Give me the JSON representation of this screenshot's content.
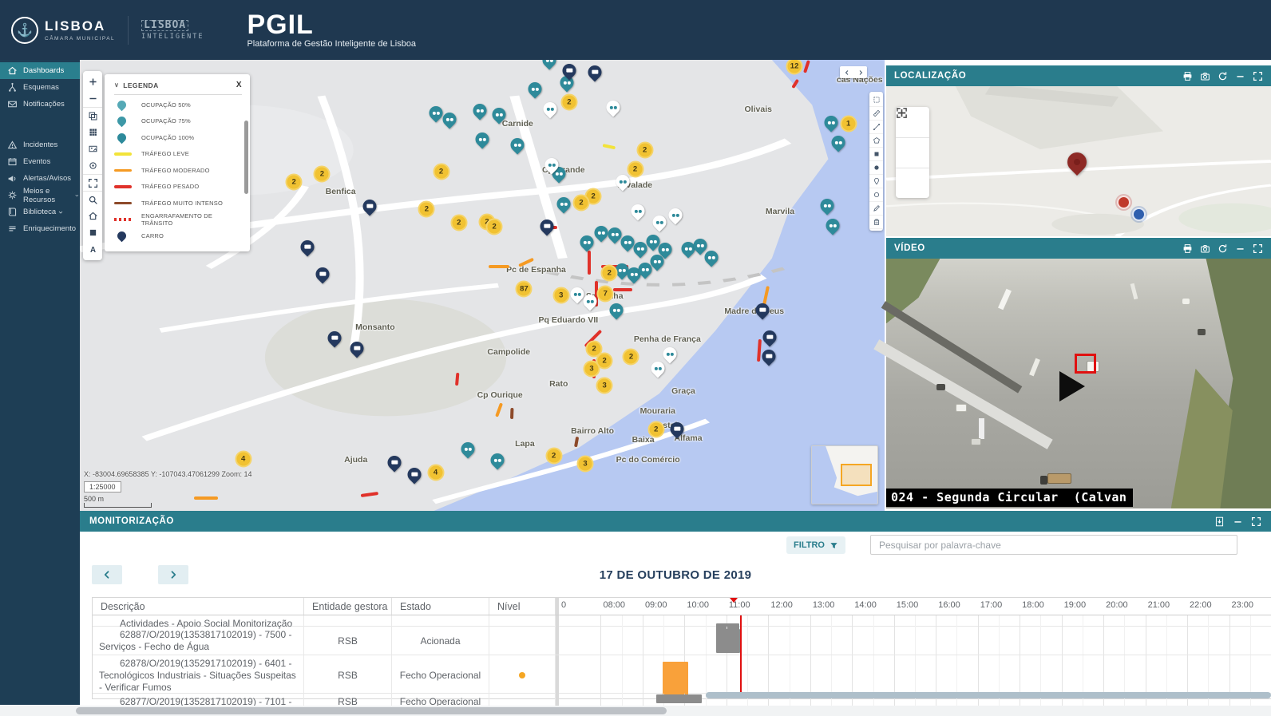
{
  "header": {
    "app_title": "PGIL",
    "app_subtitle": "Plataforma de Gestão Inteligente de Lisboa",
    "logo_lisboa": {
      "name": "LISBOA",
      "sub": "CÂMARA MUNICIPAL"
    },
    "logo_int": {
      "line1": "LISBOA",
      "line2": "INTELIGENTE"
    }
  },
  "sidebar": {
    "groups": [
      {
        "items": [
          {
            "label": "Dashboards",
            "icon": "home-icon",
            "active": true
          },
          {
            "label": "Esquemas",
            "icon": "schema-icon"
          },
          {
            "label": "Notificações",
            "icon": "mail-icon"
          }
        ]
      },
      {
        "items": [
          {
            "label": "Incidentes",
            "icon": "warning-icon"
          },
          {
            "label": "Eventos",
            "icon": "calendar-icon"
          },
          {
            "label": "Alertas/Avisos",
            "icon": "megaphone-icon"
          },
          {
            "label": "Meios e Recursos",
            "icon": "gear-icon",
            "chevron": true
          },
          {
            "label": "Biblioteca",
            "icon": "book-icon",
            "chevron": true
          },
          {
            "label": "Enriquecimento",
            "icon": "list-icon"
          }
        ]
      }
    ]
  },
  "map": {
    "toolbar": [
      "zoom-in-icon",
      "zoom-out-icon",
      "layers-icon",
      "grid-icon",
      "frame-icon",
      "rings-icon",
      "fullscreen-icon",
      "search-icon",
      "home-icon",
      "square-icon",
      "font-icon"
    ],
    "draw_toolbar": [
      "select-icon",
      "measure-icon",
      "line-icon",
      "polygon-icon",
      "square-fill-icon",
      "circle-fill-icon",
      "point-icon",
      "circle-icon",
      "edit-icon",
      "trash-icon"
    ],
    "legend": {
      "title": "LEGENDA",
      "close_label": "X",
      "items": [
        {
          "label": "OCUPAÇÃO 50%",
          "type": "pin",
          "color": "#55a9b6"
        },
        {
          "label": "OCUPAÇÃO 75%",
          "type": "pin",
          "color": "#3d98a7"
        },
        {
          "label": "OCUPAÇÃO 100%",
          "type": "pin",
          "color": "#2d8a9b"
        },
        {
          "label": "TRÁFEGO LEVE",
          "type": "line",
          "color": "#f2e33a"
        },
        {
          "label": "TRÁFEGO MODERADO",
          "type": "line",
          "color": "#f59a23"
        },
        {
          "label": "TRÁFEGO PESADO",
          "type": "line",
          "color": "#e0312a"
        },
        {
          "label": "TRÁFEGO MUITO INTENSO",
          "type": "line",
          "color": "#8d4a2a"
        },
        {
          "label": "ENGARRAFAMENTO DE TRÂNSITO",
          "type": "dots",
          "color": "#e0312a"
        },
        {
          "label": "CARRO",
          "type": "pin",
          "color": "#24395e"
        }
      ]
    },
    "status": {
      "coords": "X: -83004.69658385 Y: -107043.47061299 Zoom: 14",
      "ratio": "1:25000",
      "distance": "500 m"
    },
    "labels": [
      [
        "Carnide",
        54.4,
        14.2
      ],
      [
        "Olivais",
        84.3,
        11.0
      ],
      [
        "Cp Grande",
        60.1,
        24.4
      ],
      [
        "Alvalade",
        69.0,
        27.8
      ],
      [
        "Benfica",
        32.4,
        29.2
      ],
      [
        "Marvila",
        87.0,
        33.6
      ],
      [
        "Monsanto",
        36.7,
        59.3
      ],
      [
        "Pc de Espanha",
        56.7,
        46.5
      ],
      [
        "Saldanha",
        65.2,
        52.4
      ],
      [
        "Madre de Deus",
        83.8,
        55.8
      ],
      [
        "Pq Eduardo VII",
        60.7,
        57.7
      ],
      [
        "Campolide",
        53.3,
        64.8
      ],
      [
        "Penha de França",
        73.0,
        61.9
      ],
      [
        "Rato",
        59.5,
        71.9
      ],
      [
        "Cp Ourique",
        52.2,
        74.3
      ],
      [
        "Graça",
        75.0,
        73.5
      ],
      [
        "Mouraria",
        71.8,
        77.9
      ],
      [
        "Bairro Alto",
        63.7,
        82.3
      ],
      [
        "Castelo",
        73.0,
        81.1
      ],
      [
        "Alfama",
        75.6,
        83.9
      ],
      [
        "Lapa",
        55.3,
        85.1
      ],
      [
        "Baixa",
        70.0,
        84.2
      ],
      [
        "Ajuda",
        34.3,
        88.7
      ],
      [
        "Pc do Comércio",
        70.6,
        88.7
      ],
      [
        "cas Nações",
        96.9,
        4.4
      ]
    ],
    "markers": [
      [
        "c",
        60.8,
        9.4,
        "2"
      ],
      [
        "c",
        88.8,
        1.5,
        "12"
      ],
      [
        "c",
        95.5,
        14.2,
        "1"
      ],
      [
        "c",
        30.1,
        25.3,
        "2"
      ],
      [
        "c",
        26.6,
        27.1,
        "2"
      ],
      [
        "c",
        44.9,
        24.8,
        "2"
      ],
      [
        "c",
        43.1,
        33.1,
        "2"
      ],
      [
        "c",
        47.1,
        36.1,
        "2"
      ],
      [
        "c",
        50.6,
        35.9,
        "2"
      ],
      [
        "c",
        70.2,
        20.0,
        "2"
      ],
      [
        "c",
        69.0,
        24.2,
        "2"
      ],
      [
        "c",
        63.8,
        30.3,
        "2"
      ],
      [
        "c",
        62.3,
        31.6,
        "2"
      ],
      [
        "c",
        51.5,
        37.0,
        "2"
      ],
      [
        "c",
        55.2,
        50.8,
        "87"
      ],
      [
        "c",
        59.8,
        52.2,
        "3"
      ],
      [
        "c",
        65.3,
        51.9,
        "7"
      ],
      [
        "c",
        63.9,
        64.1,
        "2"
      ],
      [
        "c",
        65.2,
        66.7,
        "2"
      ],
      [
        "c",
        63.6,
        68.5,
        "3"
      ],
      [
        "c",
        65.2,
        72.2,
        "3"
      ],
      [
        "c",
        68.5,
        65.8,
        "2"
      ],
      [
        "c",
        71.6,
        81.9,
        "2"
      ],
      [
        "c",
        58.9,
        87.8,
        "2"
      ],
      [
        "c",
        62.8,
        89.6,
        "3"
      ],
      [
        "c",
        44.2,
        91.5,
        "4"
      ],
      [
        "c",
        20.3,
        88.5,
        "4"
      ],
      [
        "c",
        65.8,
        47.3,
        "2"
      ],
      [
        "b",
        44.2,
        13.3
      ],
      [
        "b",
        45.9,
        14.7
      ],
      [
        "b",
        49.7,
        12.7
      ],
      [
        "b",
        52.1,
        13.6
      ],
      [
        "b",
        58.3,
        1.6
      ],
      [
        "b",
        56.5,
        8.0
      ],
      [
        "b",
        60.5,
        6.5
      ],
      [
        "b",
        50.0,
        19.1
      ],
      [
        "b",
        54.4,
        20.4
      ],
      [
        "b",
        59.5,
        26.7
      ],
      [
        "b",
        60.1,
        33.5
      ],
      [
        "b",
        63.0,
        41.9
      ],
      [
        "b",
        64.8,
        39.8
      ],
      [
        "b",
        66.5,
        40.2
      ],
      [
        "b",
        68.1,
        41.9
      ],
      [
        "b",
        69.6,
        43.4
      ],
      [
        "b",
        71.2,
        41.8
      ],
      [
        "b",
        72.7,
        43.5
      ],
      [
        "b",
        67.4,
        48.1
      ],
      [
        "b",
        68.8,
        49.0
      ],
      [
        "b",
        70.2,
        48.0
      ],
      [
        "b",
        71.7,
        46.2
      ],
      [
        "b",
        75.6,
        43.4
      ],
      [
        "b",
        77.1,
        42.7
      ],
      [
        "b",
        78.5,
        45.3
      ],
      [
        "b",
        93.4,
        15.4
      ],
      [
        "b",
        94.2,
        19.8
      ],
      [
        "b",
        92.9,
        33.8
      ],
      [
        "b",
        93.6,
        38.2
      ],
      [
        "b",
        48.2,
        87.8
      ],
      [
        "b",
        51.9,
        90.3
      ],
      [
        "b",
        66.7,
        57.0
      ],
      [
        "w",
        58.4,
        12.4
      ],
      [
        "w",
        66.3,
        12.0
      ],
      [
        "w",
        58.6,
        24.8
      ],
      [
        "w",
        67.5,
        28.5
      ],
      [
        "w",
        61.8,
        53.5
      ],
      [
        "w",
        63.4,
        55.0
      ],
      [
        "w",
        71.8,
        69.9
      ],
      [
        "w",
        73.3,
        66.7
      ],
      [
        "w",
        69.3,
        35.0
      ],
      [
        "w",
        72.0,
        37.5
      ],
      [
        "w",
        74.0,
        36.0
      ],
      [
        "v",
        60.8,
        3.9
      ],
      [
        "v",
        64.0,
        4.2
      ],
      [
        "v",
        36.0,
        34.0
      ],
      [
        "v",
        58.0,
        38.4
      ],
      [
        "v",
        30.2,
        49.0
      ],
      [
        "v",
        28.3,
        43.0
      ],
      [
        "v",
        31.6,
        63.2
      ],
      [
        "v",
        34.4,
        65.5
      ],
      [
        "v",
        39.1,
        90.8
      ],
      [
        "v",
        41.6,
        93.5
      ],
      [
        "v",
        84.8,
        57.0
      ],
      [
        "v",
        85.7,
        63.0
      ],
      [
        "v",
        85.6,
        67.3
      ],
      [
        "v",
        74.2,
        83.4
      ]
    ],
    "traffic_colors": {
      "r": "#e0312a",
      "o": "#f59a23",
      "y": "#f2e33a",
      "b": "#8d4a2a"
    },
    "traffic": [
      [
        15.4,
        24.2,
        42,
        -62,
        "r"
      ],
      [
        19.5,
        39.1,
        16,
        -78,
        "r"
      ],
      [
        50.8,
        45.5,
        26,
        0,
        "o"
      ],
      [
        54.6,
        45.3,
        20,
        -25,
        "o"
      ],
      [
        63.3,
        42.0,
        30,
        90,
        "r"
      ],
      [
        64.8,
        45.5,
        34,
        0,
        "r"
      ],
      [
        64.2,
        48.6,
        32,
        90,
        "r"
      ],
      [
        66.3,
        50.6,
        24,
        0,
        "r"
      ],
      [
        62.8,
        63.2,
        28,
        -45,
        "r"
      ],
      [
        63.9,
        66.0,
        24,
        90,
        "r"
      ],
      [
        46.8,
        71.8,
        16,
        -85,
        "r"
      ],
      [
        51.8,
        78.8,
        18,
        -70,
        "o"
      ],
      [
        14.2,
        96.8,
        30,
        0,
        "o"
      ],
      [
        34.9,
        96.2,
        22,
        -8,
        "r"
      ],
      [
        85.0,
        54.0,
        24,
        -78,
        "o"
      ],
      [
        84.3,
        66.5,
        28,
        -86,
        "r"
      ],
      [
        53.7,
        79.3,
        14,
        -88,
        "b"
      ],
      [
        61.6,
        85.5,
        13,
        -80,
        "b"
      ],
      [
        65.0,
        18.6,
        16,
        12,
        "y"
      ],
      [
        90.1,
        2.5,
        16,
        -72,
        "r"
      ],
      [
        88.6,
        5.8,
        12,
        -58,
        "r"
      ],
      [
        57.3,
        36.8,
        20,
        0,
        "r"
      ]
    ]
  },
  "localizacao": {
    "title": "LOCALIZAÇÃO",
    "header_icons": [
      "printer-icon",
      "camera-icon",
      "refresh-icon",
      "minimize-icon",
      "maximize-icon"
    ],
    "zoom_icons": [
      "plus-icon",
      "minus-icon",
      "fullscreen-icon"
    ]
  },
  "video": {
    "title": "VÍDEO",
    "header_icons": [
      "printer-icon",
      "camera-icon",
      "refresh-icon",
      "minimize-icon",
      "maximize-icon"
    ],
    "caption": "024 - Segunda Circular  (Calvan"
  },
  "monit": {
    "title": "MONITORIZAÇÃO",
    "header_icons": [
      "export-icon",
      "minimize-icon",
      "maximize-icon"
    ],
    "filter_label": "FILTRO",
    "search_placeholder": "Pesquisar por palavra-chave",
    "date_title": "17 DE OUTUBRO DE 2019",
    "table": {
      "columns": [
        "Descrição",
        "Entidade gestora",
        "Estado",
        "Nível"
      ],
      "hours": [
        "0",
        "08:00",
        "09:00",
        "10:00",
        "11:00",
        "12:00",
        "13:00",
        "14:00",
        "15:00",
        "16:00",
        "17:00",
        "18:00",
        "19:00",
        "20:00",
        "21:00",
        "22:00",
        "23:00"
      ],
      "timeline": {
        "start": 7,
        "end": 24,
        "now": 11.33
      },
      "rows": [
        {
          "desc": "Actividades - Apoio Social Monitorização",
          "entidade": "",
          "estado": "",
          "nivel": false,
          "height": 14,
          "cont": true,
          "bars": [
            {
              "start": 10.75,
              "end": 11.3,
              "color": "#8c8c8c",
              "h": 10,
              "v": "bottom"
            }
          ]
        },
        {
          "desc": "62887/O/2019(1353817102019) - 7500 - Serviços - Fecho de Água",
          "entidade": "RSB",
          "estado": "Acionada",
          "nivel": false,
          "height": 36,
          "bars": [
            {
              "start": 10.75,
              "end": 11.32,
              "color": "#8c8c8c",
              "h": 30,
              "v": "middle"
            }
          ]
        },
        {
          "desc": "62878/O/2019(1352917102019) - 6401 - Tecnológicos Industriais - Situações Suspeitas - Verificar Fumos",
          "entidade": "RSB",
          "estado": "Fecho Operacional",
          "nivel": true,
          "height": 48,
          "bars": [
            {
              "start": 9.47,
              "end": 10.08,
              "color": "#f9a13a",
              "h": 42,
              "v": "bottom"
            }
          ]
        },
        {
          "desc": "62877/O/2019(1352817102019) - 7101 -",
          "entidade": "RSB",
          "estado": "Fecho Operacional",
          "nivel": false,
          "height": 18,
          "bars": [
            {
              "start": 9.33,
              "end": 10.42,
              "color": "#8c8c8c",
              "h": 11,
              "v": "top"
            }
          ]
        }
      ]
    }
  }
}
